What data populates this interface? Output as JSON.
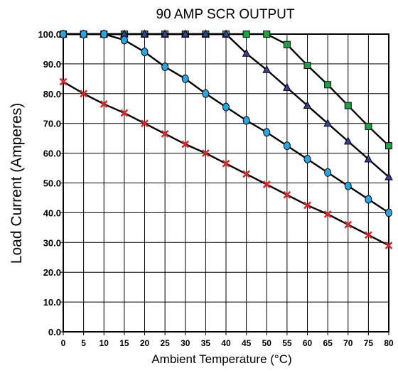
{
  "chart_data": {
    "type": "line",
    "title": "90 AMP SCR OUTPUT",
    "xlabel": "Ambient Temperature (°C)",
    "ylabel": "Load Current (Amperes)",
    "xlim": [
      0,
      80
    ],
    "ylim": [
      0,
      100
    ],
    "x_ticks": [
      "0",
      "5",
      "10",
      "15",
      "20",
      "25",
      "30",
      "35",
      "40",
      "45",
      "50",
      "55",
      "60",
      "65",
      "70",
      "75",
      "80"
    ],
    "y_ticks": [
      "0.0",
      "10.0",
      "20.0",
      "30.0",
      "40.0",
      "50.0",
      "60.0",
      "70.0",
      "80.0",
      "90.0",
      "100.0"
    ],
    "grid": true,
    "x": [
      0,
      5,
      10,
      15,
      20,
      25,
      30,
      35,
      40,
      45,
      50,
      55,
      60,
      65,
      70,
      75,
      80
    ],
    "series": [
      {
        "marker": "square",
        "color": "#22a046",
        "values": [
          100,
          100,
          100,
          100,
          100,
          100,
          100,
          100,
          100,
          100,
          100,
          96.5,
          89.5,
          83,
          76,
          69,
          62.5
        ]
      },
      {
        "marker": "triangle",
        "color": "#3a3f9a",
        "values": [
          100,
          100,
          100,
          100,
          100,
          100,
          100,
          100,
          100,
          93.5,
          88,
          82,
          76,
          70,
          64,
          58,
          52
        ]
      },
      {
        "marker": "circle",
        "color": "#2aa5e0",
        "values": [
          100,
          100,
          100,
          98,
          94,
          89,
          85,
          80,
          75.5,
          71,
          67,
          62.5,
          58,
          53.5,
          49,
          44.5,
          40
        ]
      },
      {
        "marker": "x",
        "color": "#d42a2a",
        "values": [
          84,
          80,
          76.5,
          73.5,
          70,
          66.5,
          63,
          60,
          56.5,
          53,
          49.5,
          46,
          42.5,
          39.5,
          36,
          32.5,
          29
        ]
      }
    ]
  }
}
